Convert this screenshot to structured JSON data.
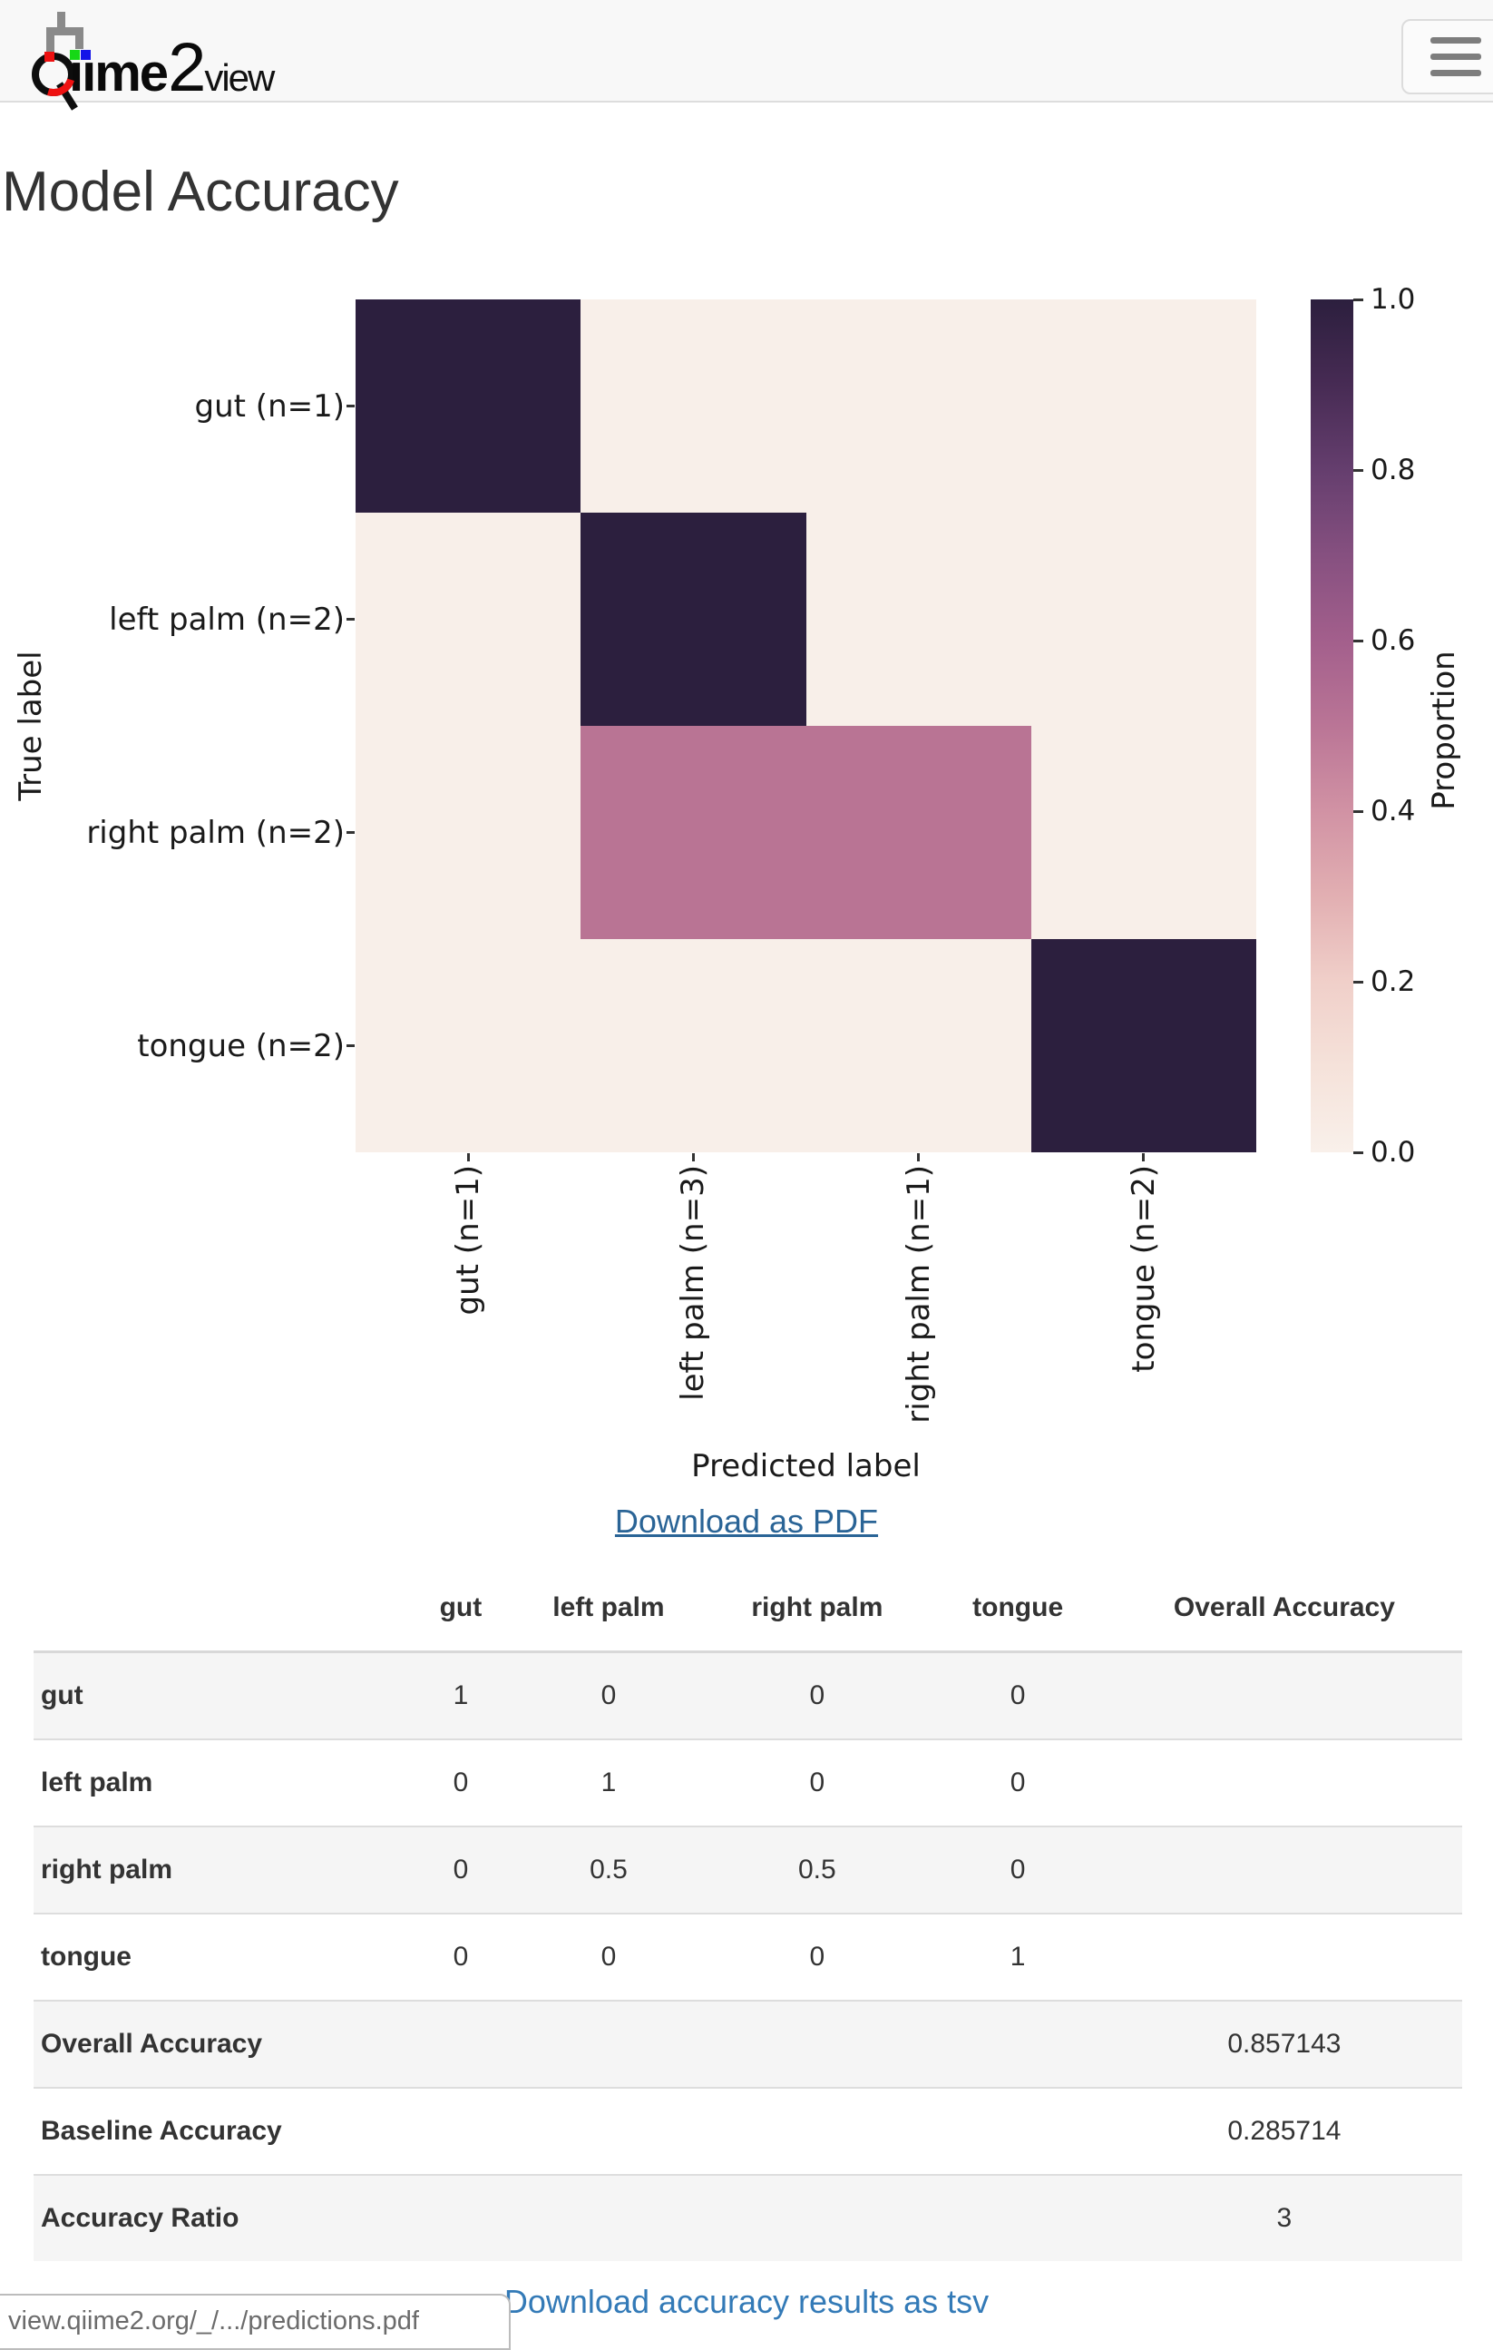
{
  "nav": {
    "logo_iime": "ııme",
    "logo_2": "2",
    "logo_view": "view"
  },
  "page": {
    "title": "Model Accuracy"
  },
  "chart_data": {
    "type": "heatmap",
    "title": "",
    "xlabel": "Predicted label",
    "ylabel": "True label",
    "x_categories": [
      "gut (n=1)",
      "left palm (n=3)",
      "right palm (n=1)",
      "tongue (n=2)"
    ],
    "y_categories": [
      "gut (n=1)",
      "left palm (n=2)",
      "right palm (n=2)",
      "tongue (n=2)"
    ],
    "values": [
      [
        1,
        0,
        0,
        0
      ],
      [
        0,
        1,
        0,
        0
      ],
      [
        0,
        0.5,
        0.5,
        0
      ],
      [
        0,
        0,
        0,
        1
      ]
    ],
    "value_colors": {
      "0": "#f8efe9",
      "0.5": "#b97494",
      "1": "#2c1f3e"
    },
    "colorbar": {
      "label": "Proportion",
      "ticks": [
        "1.0",
        "0.8",
        "0.6",
        "0.4",
        "0.2",
        "0.0"
      ],
      "range": [
        0,
        1
      ],
      "gradient_stops": [
        "#f9f0ea",
        "#f5e2da",
        "#f0cfc9",
        "#e2afb2",
        "#d192a4",
        "#ba7596",
        "#a35f8c",
        "#865080",
        "#653e6e",
        "#472b54",
        "#2c1f3e"
      ]
    },
    "legend_position": "right",
    "grid": false
  },
  "links": {
    "pdf": "Download as PDF",
    "tsv": "Download accuracy results as tsv"
  },
  "table": {
    "headers": [
      "gut",
      "left palm",
      "right palm",
      "tongue",
      "Overall Accuracy"
    ],
    "rows": [
      {
        "label": "gut",
        "values": [
          "1",
          "0",
          "0",
          "0",
          ""
        ]
      },
      {
        "label": "left palm",
        "values": [
          "0",
          "1",
          "0",
          "0",
          ""
        ]
      },
      {
        "label": "right palm",
        "values": [
          "0",
          "0.5",
          "0.5",
          "0",
          ""
        ]
      },
      {
        "label": "tongue",
        "values": [
          "0",
          "0",
          "0",
          "1",
          ""
        ]
      },
      {
        "label": "Overall Accuracy",
        "values": [
          "",
          "",
          "",
          "",
          "0.857143"
        ]
      },
      {
        "label": "Baseline Accuracy",
        "values": [
          "",
          "",
          "",
          "",
          "0.285714"
        ]
      },
      {
        "label": "Accuracy Ratio",
        "values": [
          "",
          "",
          "",
          "",
          "3"
        ]
      }
    ]
  },
  "status_bar": {
    "url": "view.qiime2.org/_/.../predictions.pdf"
  },
  "colors": {
    "link": "#337ab7",
    "link_hover": "#2a6496",
    "navbar_bg": "#f8f8f8",
    "stripe": "#f5f5f5",
    "cell_high": "#2c1f3e",
    "cell_mid": "#b97494",
    "cell_low": "#f8efe9"
  }
}
